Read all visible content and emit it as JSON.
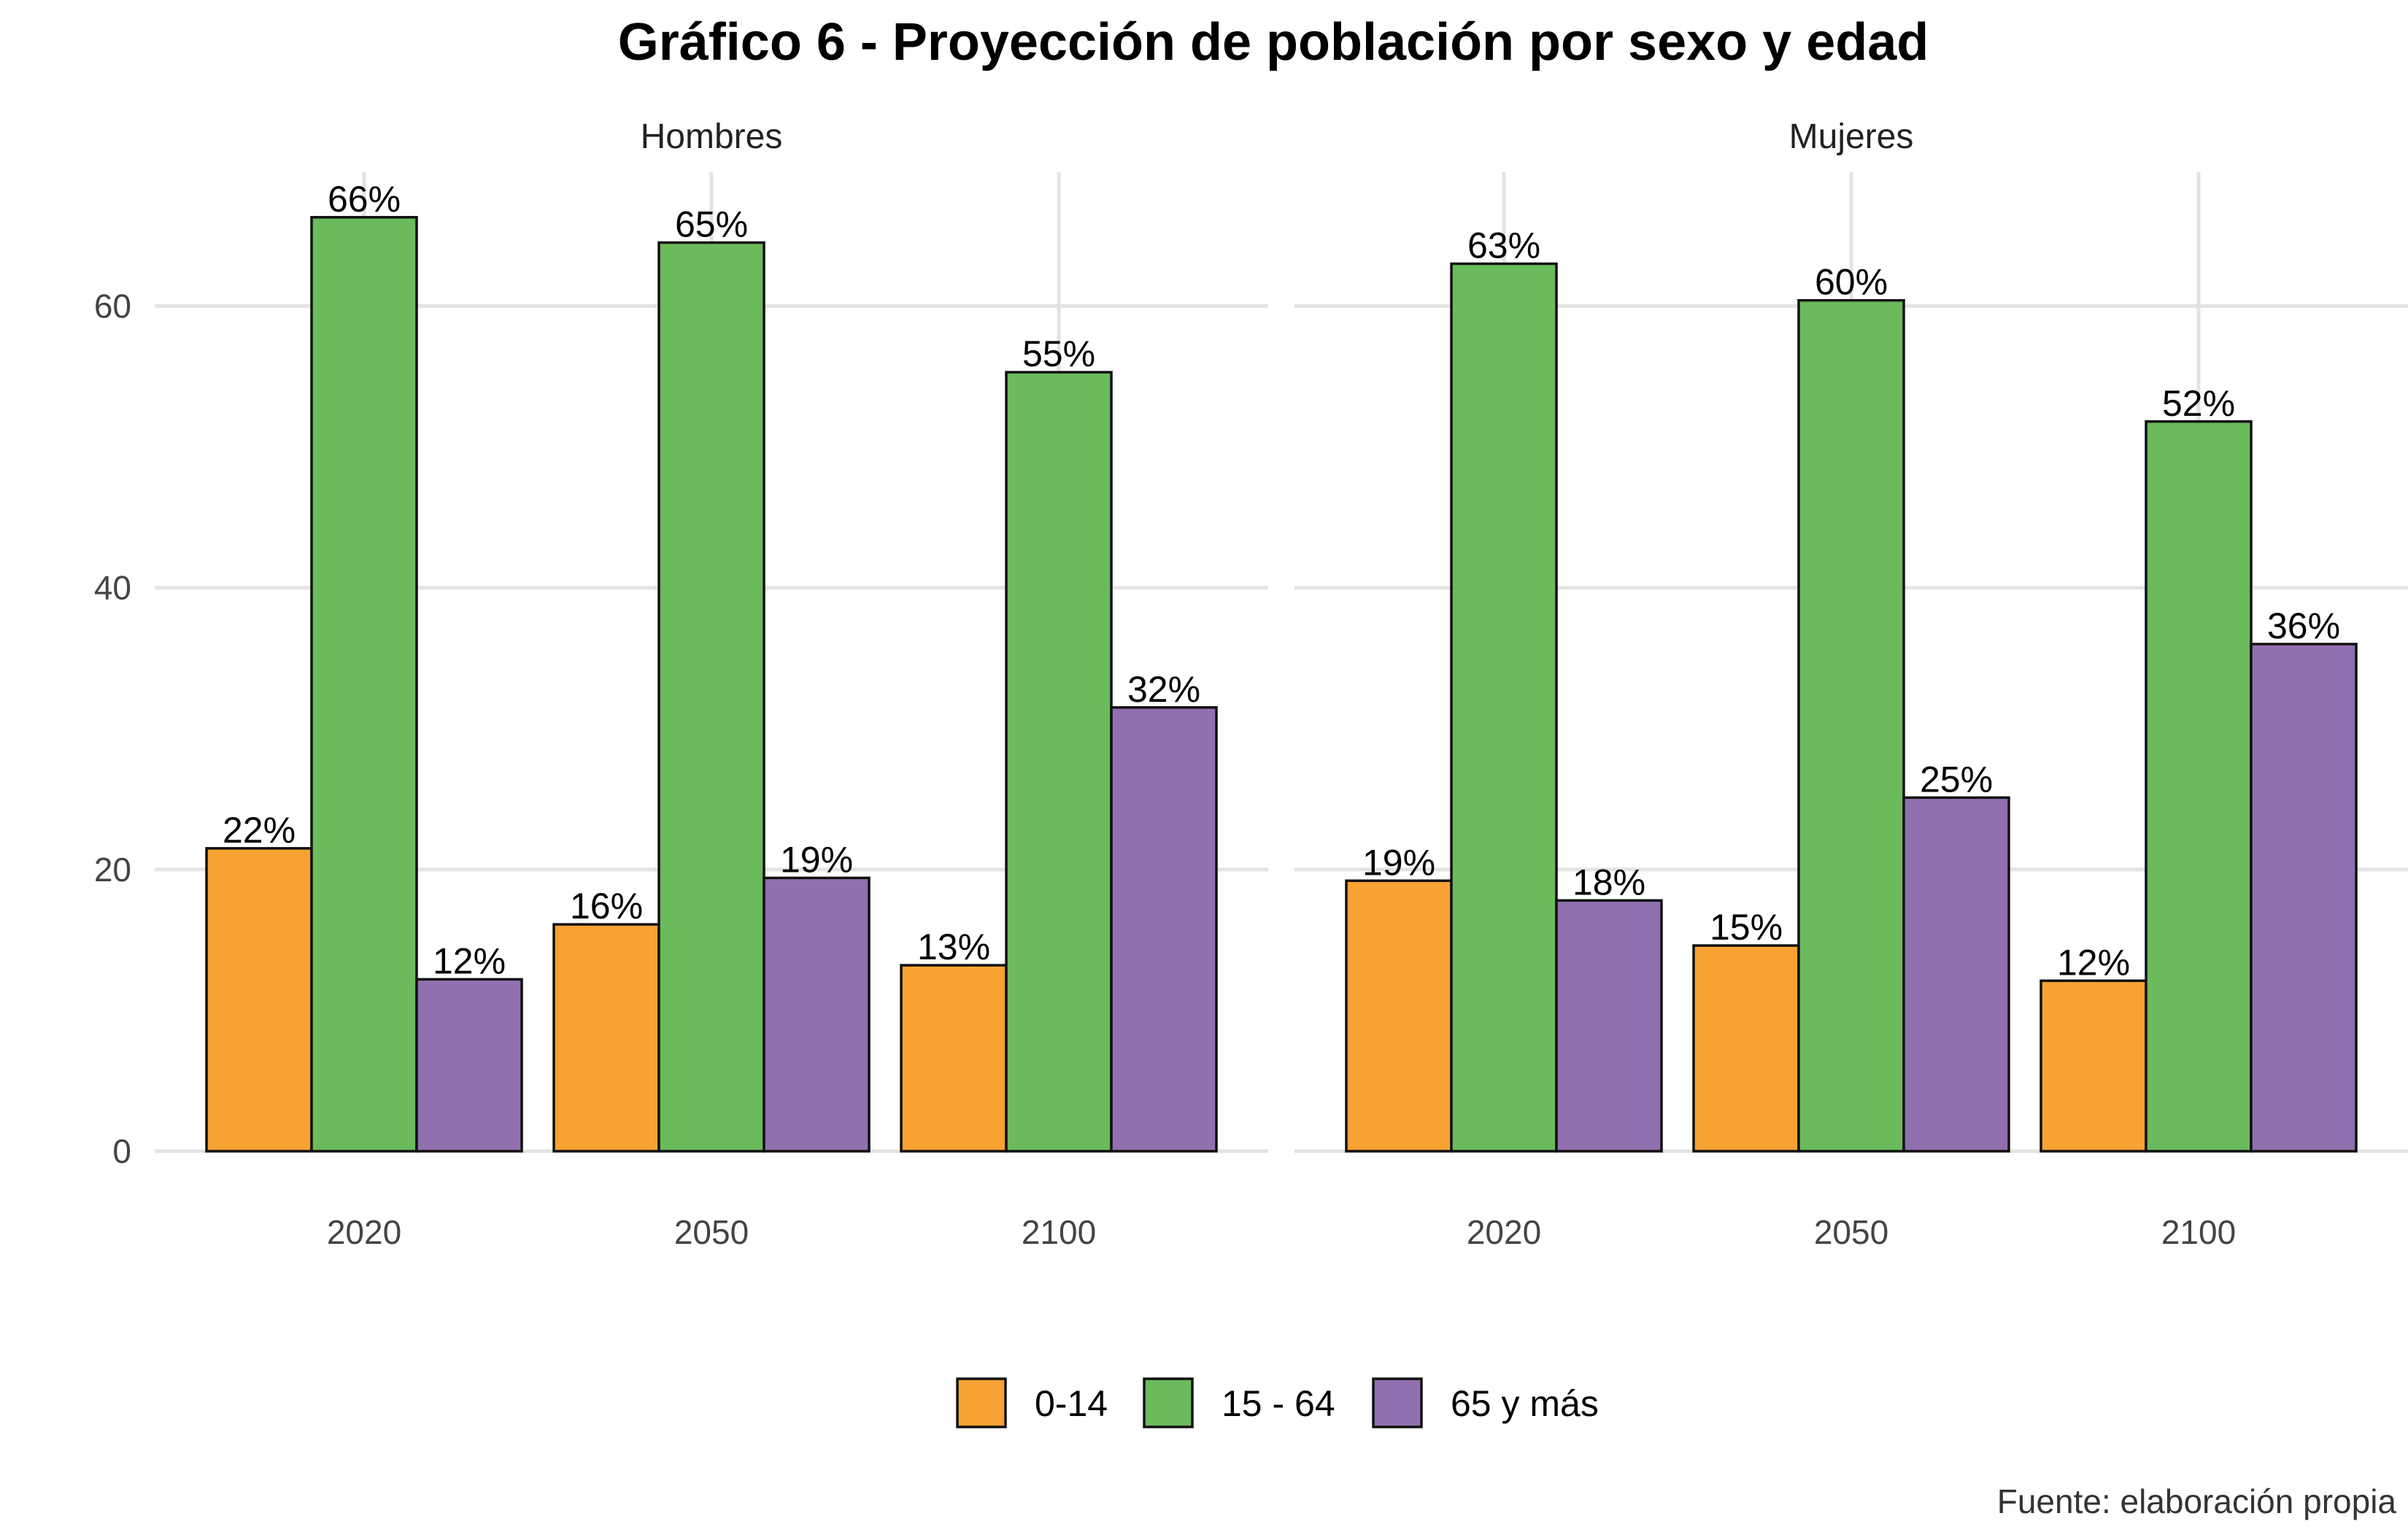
{
  "chart_data": {
    "type": "bar",
    "title": "Gráfico 6 - Proyección de población por sexo y edad",
    "caption": "Fuente: elaboración propia",
    "xlabel": "",
    "ylabel": "",
    "ylim": [
      0,
      69.5
    ],
    "yticks": [
      0,
      20,
      40,
      60
    ],
    "grid": true,
    "legend_position": "bottom",
    "series_names": [
      "0-14",
      "15 - 64",
      "65 y más"
    ],
    "colors": {
      "0-14": "#F7A233",
      "15 - 64": "#6BBA5B",
      "65 y más": "#9170AF"
    },
    "panels": [
      {
        "name": "Hombres",
        "categories": [
          "2020",
          "2050",
          "2100"
        ],
        "series": [
          {
            "name": "0-14",
            "values": [
              21.5,
              16.1,
              13.2
            ],
            "labels": [
              "22%",
              "16%",
              "13%"
            ]
          },
          {
            "name": "15 - 64",
            "values": [
              66.3,
              64.5,
              55.3
            ],
            "labels": [
              "66%",
              "65%",
              "55%"
            ]
          },
          {
            "name": "65 y más",
            "values": [
              12.2,
              19.4,
              31.5
            ],
            "labels": [
              "12%",
              "19%",
              "32%"
            ]
          }
        ]
      },
      {
        "name": "Mujeres",
        "categories": [
          "2020",
          "2050",
          "2100"
        ],
        "series": [
          {
            "name": "0-14",
            "values": [
              19.2,
              14.6,
              12.1
            ],
            "labels": [
              "19%",
              "15%",
              "12%"
            ]
          },
          {
            "name": "15 - 64",
            "values": [
              63.0,
              60.4,
              51.8
            ],
            "labels": [
              "63%",
              "60%",
              "52%"
            ]
          },
          {
            "name": "65 y más",
            "values": [
              17.8,
              25.1,
              36.0
            ],
            "labels": [
              "18%",
              "25%",
              "36%"
            ]
          }
        ]
      }
    ]
  }
}
